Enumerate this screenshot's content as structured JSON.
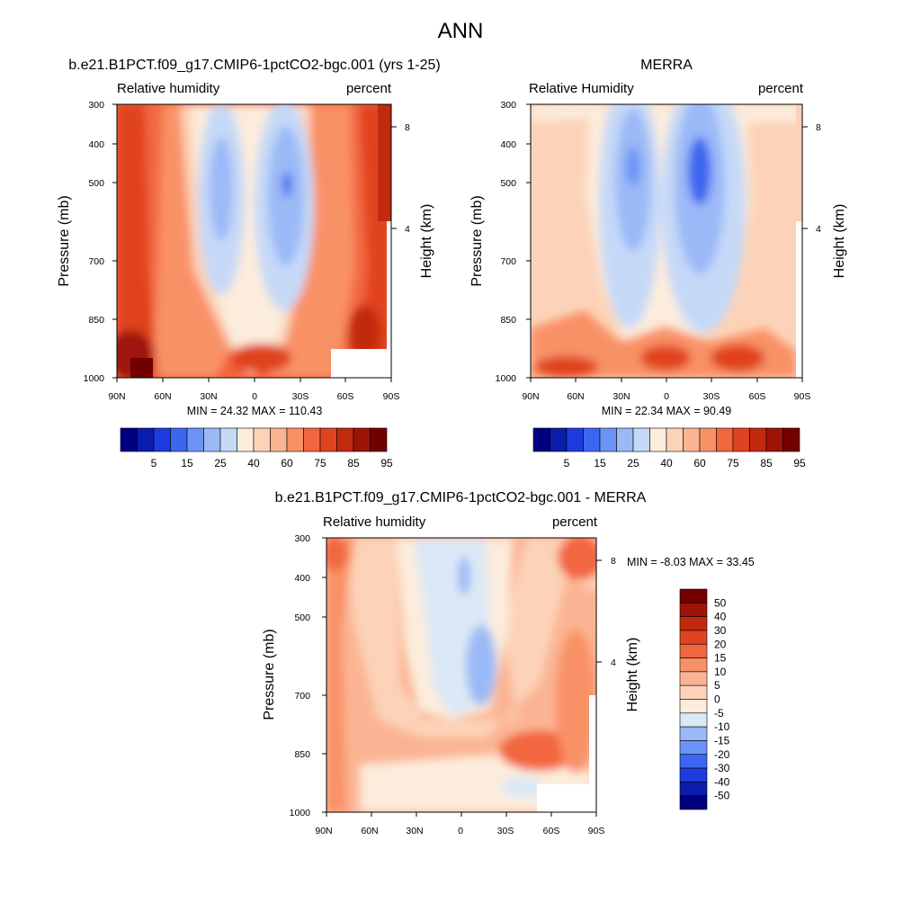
{
  "figure": {
    "title": "ANN"
  },
  "chart_data": [
    {
      "type": "heatmap",
      "panel_title": "b.e21.B1PCT.f09_g17.CMIP6-1pctCO2-bgc.001 (yrs 1-25)",
      "left_label": "Relative humidity",
      "right_label": "percent",
      "ylabel": "Pressure (mb)",
      "ylabel_right": "Height (km)",
      "x_ticks": [
        "90N",
        "60N",
        "30N",
        "0",
        "30S",
        "60S",
        "90S"
      ],
      "y_ticks": [
        "300",
        "400",
        "500",
        "700",
        "850",
        "1000"
      ],
      "y_ticks_right": [
        "8",
        "4"
      ],
      "xlim": [
        90,
        -90
      ],
      "ylim": [
        1000,
        300
      ],
      "stats_text": "MIN =  24.32  MAX = 110.43",
      "min": 24.32,
      "max": 110.43,
      "colorbar_labels": [
        "5",
        "15",
        "25",
        "40",
        "60",
        "75",
        "85",
        "95"
      ],
      "colorbar_levels": [
        5,
        10,
        15,
        20,
        25,
        30,
        40,
        50,
        60,
        65,
        75,
        80,
        85,
        90,
        95
      ]
    },
    {
      "type": "heatmap",
      "panel_title": "MERRA",
      "left_label": "Relative Humidity",
      "right_label": "percent",
      "ylabel": "Pressure (mb)",
      "ylabel_right": "Height (km)",
      "x_ticks": [
        "90N",
        "60N",
        "30N",
        "0",
        "30S",
        "60S",
        "90S"
      ],
      "y_ticks": [
        "300",
        "400",
        "500",
        "700",
        "850",
        "1000"
      ],
      "y_ticks_right": [
        "8",
        "4"
      ],
      "xlim": [
        90,
        -90
      ],
      "ylim": [
        1000,
        300
      ],
      "stats_text": "MIN =  22.34  MAX =  90.49",
      "min": 22.34,
      "max": 90.49,
      "colorbar_labels": [
        "5",
        "15",
        "25",
        "40",
        "60",
        "75",
        "85",
        "95"
      ],
      "colorbar_levels": [
        5,
        10,
        15,
        20,
        25,
        30,
        40,
        50,
        60,
        65,
        75,
        80,
        85,
        90,
        95
      ]
    },
    {
      "type": "heatmap",
      "panel_title": "b.e21.B1PCT.f09_g17.CMIP6-1pctCO2-bgc.001 - MERRA",
      "left_label": "Relative humidity",
      "right_label": "percent",
      "ylabel": "Pressure (mb)",
      "ylabel_right": "Height (km)",
      "x_ticks": [
        "90N",
        "60N",
        "30N",
        "0",
        "30S",
        "60S",
        "90S"
      ],
      "y_ticks": [
        "300",
        "400",
        "500",
        "700",
        "850",
        "1000"
      ],
      "y_ticks_right": [
        "8",
        "4"
      ],
      "xlim": [
        90,
        -90
      ],
      "ylim": [
        1000,
        300
      ],
      "stats_text": "MIN = -8.03  MAX =  33.45",
      "min": -8.03,
      "max": 33.45,
      "colorbar_labels": [
        "50",
        "40",
        "30",
        "20",
        "15",
        "10",
        "5",
        "0",
        "-5",
        "-10",
        "-15",
        "-20",
        "-30",
        "-40",
        "-50"
      ],
      "colorbar_levels": [
        -50,
        -40,
        -30,
        -20,
        -15,
        -10,
        -5,
        0,
        5,
        10,
        15,
        20,
        30,
        40,
        50
      ]
    }
  ],
  "colors": {
    "full_palette": [
      "#000080",
      "#0a1dab",
      "#1d3ce0",
      "#3d66f0",
      "#6b93f5",
      "#9bb9f7",
      "#c5d9f7",
      "#fcecdc",
      "#fcd3b8",
      "#fbb493",
      "#f99166",
      "#f2663f",
      "#e0431f",
      "#c22a10",
      "#9e1408",
      "#730000"
    ],
    "diff_palette": [
      "#730000",
      "#9e1408",
      "#c22a10",
      "#e0431f",
      "#f2663f",
      "#f99166",
      "#fbb493",
      "#fcd3b8",
      "#fcecdc",
      "#dbe8f7",
      "#9bb9f7",
      "#6b93f5",
      "#3d66f0",
      "#1d3ce0",
      "#0a1dab",
      "#000080"
    ]
  }
}
